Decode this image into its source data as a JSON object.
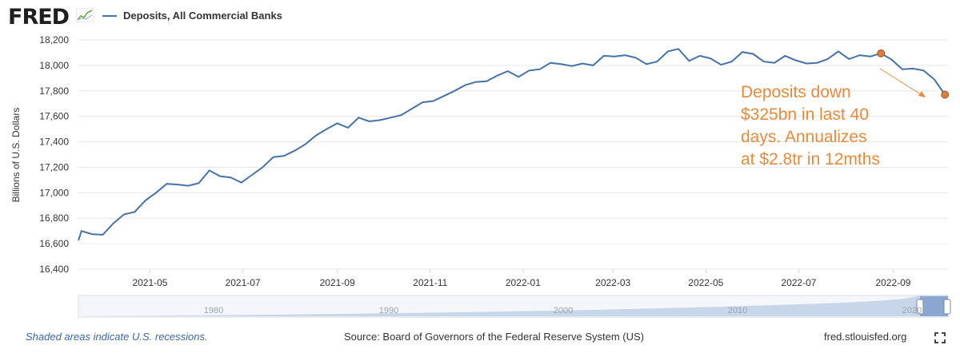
{
  "header": {
    "logo_text": "FRED",
    "legend_label": "Deposits, All Commercial Banks",
    "series_color": "#4572a7"
  },
  "chart_data": {
    "type": "line",
    "ylabel": "Billions of U.S. Dollars",
    "ylim": [
      16400,
      18200
    ],
    "yticks": [
      16400,
      16600,
      16800,
      17000,
      17200,
      17400,
      17600,
      17800,
      18000,
      18200
    ],
    "ytick_labels": [
      "16,400",
      "16,600",
      "16,800",
      "17,000",
      "17,200",
      "17,400",
      "17,600",
      "17,800",
      "18,000",
      "18,200"
    ],
    "xlim": [
      "2021-03-15",
      "2022-10-07"
    ],
    "xticks": [
      "2021-05-01",
      "2021-07-01",
      "2021-09-01",
      "2021-11-01",
      "2022-01-01",
      "2022-03-01",
      "2022-05-01",
      "2022-07-01",
      "2022-09-01"
    ],
    "xtick_labels": [
      "2021-05",
      "2021-07",
      "2021-09",
      "2021-11",
      "2022-01",
      "2022-03",
      "2022-05",
      "2022-07",
      "2022-09"
    ],
    "grid": true,
    "series": [
      {
        "name": "Deposits, All Commercial Banks",
        "color": "#4572a7",
        "x": [
          "2021-03-15",
          "2021-03-17",
          "2021-03-24",
          "2021-03-31",
          "2021-04-07",
          "2021-04-14",
          "2021-04-21",
          "2021-04-28",
          "2021-05-05",
          "2021-05-12",
          "2021-05-19",
          "2021-05-26",
          "2021-06-02",
          "2021-06-09",
          "2021-06-16",
          "2021-06-23",
          "2021-06-30",
          "2021-07-07",
          "2021-07-14",
          "2021-07-21",
          "2021-07-28",
          "2021-08-04",
          "2021-08-11",
          "2021-08-18",
          "2021-08-25",
          "2021-09-01",
          "2021-09-08",
          "2021-09-15",
          "2021-09-22",
          "2021-09-29",
          "2021-10-06",
          "2021-10-13",
          "2021-10-20",
          "2021-10-27",
          "2021-11-03",
          "2021-11-10",
          "2021-11-17",
          "2021-11-24",
          "2021-12-01",
          "2021-12-08",
          "2021-12-15",
          "2021-12-22",
          "2021-12-29",
          "2022-01-05",
          "2022-01-12",
          "2022-01-19",
          "2022-01-26",
          "2022-02-02",
          "2022-02-09",
          "2022-02-16",
          "2022-02-23",
          "2022-03-02",
          "2022-03-09",
          "2022-03-16",
          "2022-03-23",
          "2022-03-30",
          "2022-04-06",
          "2022-04-13",
          "2022-04-20",
          "2022-04-27",
          "2022-05-04",
          "2022-05-11",
          "2022-05-18",
          "2022-05-25",
          "2022-06-01",
          "2022-06-08",
          "2022-06-15",
          "2022-06-22",
          "2022-06-29",
          "2022-07-06",
          "2022-07-13",
          "2022-07-20",
          "2022-07-27",
          "2022-08-03",
          "2022-08-10",
          "2022-08-17",
          "2022-08-24",
          "2022-08-31",
          "2022-09-07",
          "2022-09-14",
          "2022-09-21",
          "2022-09-28",
          "2022-10-05"
        ],
        "values": [
          16625,
          16700,
          16675,
          16670,
          16760,
          16830,
          16850,
          16940,
          17000,
          17070,
          17065,
          17055,
          17075,
          17175,
          17130,
          17120,
          17080,
          17140,
          17200,
          17280,
          17290,
          17330,
          17380,
          17450,
          17500,
          17545,
          17510,
          17590,
          17560,
          17570,
          17590,
          17610,
          17660,
          17710,
          17720,
          17760,
          17800,
          17845,
          17870,
          17875,
          17920,
          17955,
          17910,
          17960,
          17970,
          18020,
          18010,
          17995,
          18015,
          18000,
          18075,
          18070,
          18080,
          18060,
          18010,
          18030,
          18110,
          18130,
          18035,
          18075,
          18055,
          18005,
          18030,
          18105,
          18090,
          18030,
          18020,
          18075,
          18040,
          18015,
          18020,
          18050,
          18110,
          18050,
          18080,
          18070,
          18095,
          18045,
          17970,
          17975,
          17960,
          17890,
          17770
        ]
      }
    ],
    "markers": [
      {
        "x": "2022-08-24",
        "value": 18095,
        "color": "#e07b39"
      },
      {
        "x": "2022-10-05",
        "value": 17770,
        "color": "#e07b39"
      }
    ],
    "annotation": {
      "lines": [
        "Deposits down",
        "$325bn in last 40",
        "days. Annualizes",
        "at $2.8tr in 12mths"
      ],
      "color": "#e88a3c"
    }
  },
  "navigator": {
    "tick_labels": [
      "1980",
      "1990",
      "2000",
      "2010",
      "2020"
    ],
    "handle_color": "#7f9fcd"
  },
  "footer": {
    "note": "Shaded areas indicate U.S. recessions.",
    "source": "Source: Board of Governors of the Federal Reserve System (US)",
    "site": "fred.stlouisfed.org"
  }
}
